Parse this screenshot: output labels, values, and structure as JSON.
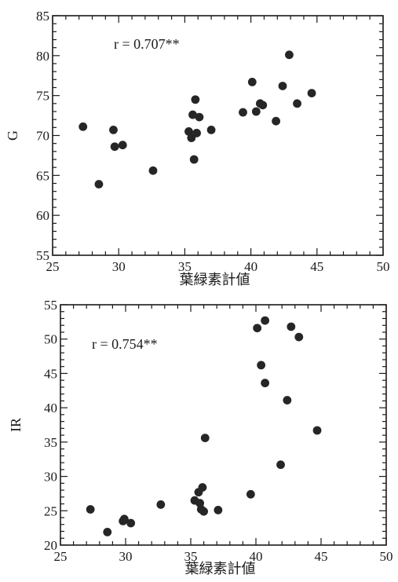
{
  "chart_data": [
    {
      "type": "scatter",
      "xlabel": "葉緑素計値",
      "ylabel": "G",
      "xlim": [
        25,
        50
      ],
      "ylim": [
        55,
        85
      ],
      "x_ticks": [
        25,
        30,
        35,
        40,
        45,
        50
      ],
      "y_ticks": [
        55,
        60,
        65,
        70,
        75,
        80,
        85
      ],
      "annotation": "r = 0.707**",
      "grid": false,
      "points": [
        {
          "x": 27.3,
          "y": 71.1
        },
        {
          "x": 28.5,
          "y": 63.9
        },
        {
          "x": 29.6,
          "y": 70.7
        },
        {
          "x": 29.7,
          "y": 68.6
        },
        {
          "x": 30.3,
          "y": 68.8
        },
        {
          "x": 32.6,
          "y": 65.6
        },
        {
          "x": 35.3,
          "y": 70.5
        },
        {
          "x": 35.5,
          "y": 69.7
        },
        {
          "x": 35.6,
          "y": 72.6
        },
        {
          "x": 35.7,
          "y": 67.0
        },
        {
          "x": 35.8,
          "y": 74.5
        },
        {
          "x": 35.9,
          "y": 70.3
        },
        {
          "x": 36.1,
          "y": 72.3
        },
        {
          "x": 37.0,
          "y": 70.7
        },
        {
          "x": 39.4,
          "y": 72.9
        },
        {
          "x": 40.1,
          "y": 76.7
        },
        {
          "x": 40.4,
          "y": 73.0
        },
        {
          "x": 40.7,
          "y": 74.0
        },
        {
          "x": 40.9,
          "y": 73.8
        },
        {
          "x": 41.9,
          "y": 71.8
        },
        {
          "x": 42.4,
          "y": 76.2
        },
        {
          "x": 42.9,
          "y": 80.1
        },
        {
          "x": 43.5,
          "y": 74.0
        },
        {
          "x": 44.6,
          "y": 75.3
        }
      ]
    },
    {
      "type": "scatter",
      "xlabel": "葉緑素計値",
      "ylabel": "IR",
      "xlim": [
        25,
        50
      ],
      "ylim": [
        20,
        55
      ],
      "x_ticks": [
        25,
        30,
        35,
        40,
        45,
        50
      ],
      "y_ticks": [
        20,
        25,
        30,
        35,
        40,
        45,
        50,
        55
      ],
      "annotation": "r = 0.754**",
      "grid": false,
      "points": [
        {
          "x": 27.3,
          "y": 25.2
        },
        {
          "x": 28.6,
          "y": 21.9
        },
        {
          "x": 29.8,
          "y": 23.5
        },
        {
          "x": 29.9,
          "y": 23.8
        },
        {
          "x": 30.4,
          "y": 23.2
        },
        {
          "x": 32.7,
          "y": 25.9
        },
        {
          "x": 35.3,
          "y": 26.5
        },
        {
          "x": 35.6,
          "y": 27.7
        },
        {
          "x": 35.7,
          "y": 26.1
        },
        {
          "x": 35.8,
          "y": 25.2
        },
        {
          "x": 35.9,
          "y": 28.4
        },
        {
          "x": 36.0,
          "y": 24.9
        },
        {
          "x": 36.1,
          "y": 35.6
        },
        {
          "x": 37.1,
          "y": 25.1
        },
        {
          "x": 39.6,
          "y": 27.4
        },
        {
          "x": 40.1,
          "y": 51.6
        },
        {
          "x": 40.4,
          "y": 46.2
        },
        {
          "x": 40.7,
          "y": 43.6
        },
        {
          "x": 40.7,
          "y": 52.7
        },
        {
          "x": 41.9,
          "y": 31.7
        },
        {
          "x": 42.4,
          "y": 41.1
        },
        {
          "x": 42.7,
          "y": 51.8
        },
        {
          "x": 43.3,
          "y": 50.3
        },
        {
          "x": 44.7,
          "y": 36.7
        }
      ]
    }
  ]
}
